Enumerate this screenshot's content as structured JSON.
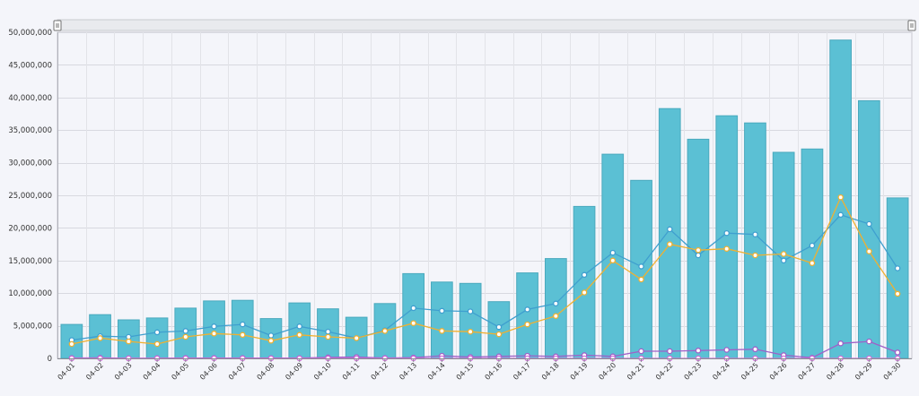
{
  "chart_data": {
    "type": "bar",
    "categories": [
      "04-01",
      "04-02",
      "04-03",
      "04-04",
      "04-05",
      "04-06",
      "04-07",
      "04-08",
      "04-09",
      "04-10",
      "04-11",
      "04-12",
      "04-13",
      "04-14",
      "04-15",
      "04-16",
      "04-17",
      "04-18",
      "04-19",
      "04-20",
      "04-21",
      "04-22",
      "04-23",
      "04-24",
      "04-25",
      "04-26",
      "04-27",
      "04-28",
      "04-29",
      "04-30"
    ],
    "ylim": [
      0,
      50000000
    ],
    "yticks": [
      0,
      5000000,
      10000000,
      15000000,
      20000000,
      25000000,
      30000000,
      35000000,
      40000000,
      45000000,
      50000000
    ],
    "ytick_labels": [
      "0",
      "5,000,000",
      "10,000,000",
      "15,000,000",
      "20,000,000",
      "25,000,000",
      "30,000,000",
      "35,000,000",
      "40,000,000",
      "45,000,000",
      "50,000,000"
    ],
    "grid": true,
    "bars": {
      "color": "#5bc0d4",
      "values": [
        5200000,
        6700000,
        5900000,
        6200000,
        7700000,
        8800000,
        8900000,
        6100000,
        8500000,
        7600000,
        6300000,
        8400000,
        13000000,
        11700000,
        11500000,
        8700000,
        13100000,
        15300000,
        23300000,
        31300000,
        27300000,
        38300000,
        33600000,
        37200000,
        36100000,
        31600000,
        32100000,
        48800000,
        39500000,
        24600000
      ]
    },
    "series": [
      {
        "color": "#3f9fcf",
        "values": [
          2800000,
          3400000,
          3300000,
          4000000,
          4200000,
          4900000,
          5200000,
          3500000,
          4900000,
          4100000,
          3100000,
          4300000,
          7700000,
          7300000,
          7200000,
          4800000,
          7500000,
          8400000,
          12800000,
          16200000,
          14100000,
          19800000,
          15800000,
          19200000,
          19000000,
          15000000,
          17300000,
          22000000,
          20600000,
          13800000
        ]
      },
      {
        "color": "#f0b030",
        "values": [
          2200000,
          3100000,
          2600000,
          2200000,
          3300000,
          3800000,
          3600000,
          2700000,
          3600000,
          3300000,
          3100000,
          4200000,
          5400000,
          4200000,
          4100000,
          3700000,
          5200000,
          6500000,
          10100000,
          15000000,
          12100000,
          17500000,
          16600000,
          16800000,
          15800000,
          16000000,
          14600000,
          24700000,
          16400000,
          9900000
        ]
      },
      {
        "color": "#a060c8",
        "values": [
          50000,
          80000,
          20000,
          30000,
          50000,
          50000,
          60000,
          40000,
          40000,
          150000,
          200000,
          60000,
          130000,
          400000,
          200000,
          300000,
          400000,
          300000,
          500000,
          300000,
          1100000,
          1100000,
          1200000,
          1300000,
          1400000,
          500000,
          100000,
          2300000,
          2600000,
          900000
        ]
      },
      {
        "color": "#d070d8",
        "values": [
          0,
          0,
          0,
          0,
          0,
          0,
          0,
          0,
          0,
          0,
          0,
          0,
          0,
          0,
          0,
          0,
          0,
          0,
          0,
          0,
          0,
          0,
          0,
          0,
          0,
          0,
          0,
          0,
          0,
          0
        ]
      }
    ]
  }
}
